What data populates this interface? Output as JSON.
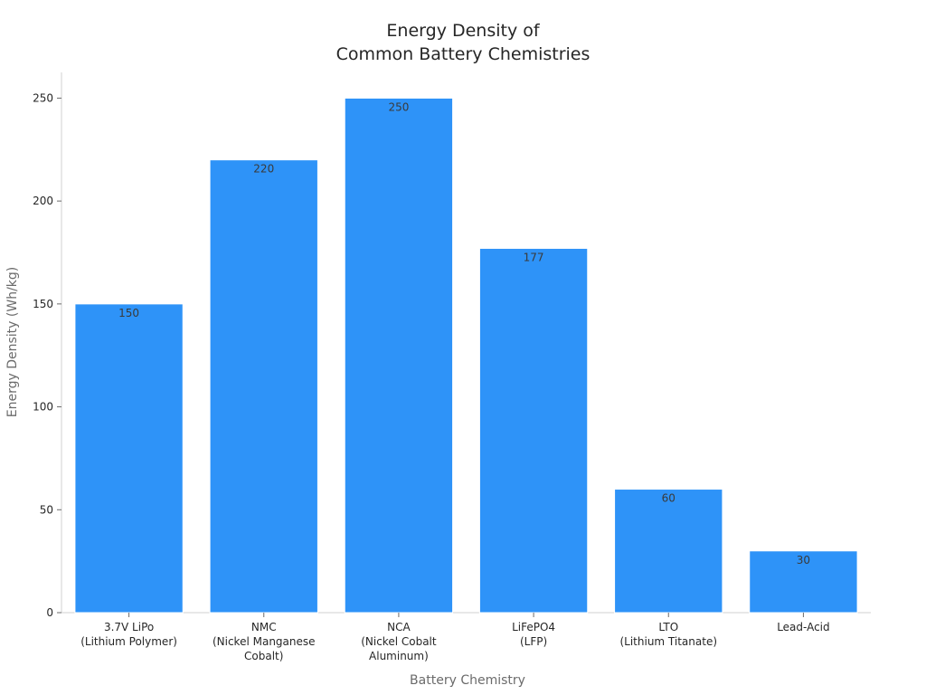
{
  "chart_data": {
    "type": "bar",
    "title_lines": [
      "Energy Density of",
      "Common Battery Chemistries"
    ],
    "xlabel": "Battery Chemistry",
    "ylabel": "Energy Density (Wh/kg)",
    "categories": [
      [
        "3.7V LiPo",
        "(Lithium Polymer)"
      ],
      [
        "NMC",
        "(Nickel Manganese",
        "Cobalt)"
      ],
      [
        "NCA",
        "(Nickel Cobalt",
        "Aluminum)"
      ],
      [
        "LiFePO4",
        "(LFP)"
      ],
      [
        "LTO",
        "(Lithium Titanate)"
      ],
      [
        "Lead-Acid"
      ]
    ],
    "values": [
      150,
      220,
      250,
      177,
      60,
      30
    ],
    "data_labels": [
      "150",
      "220",
      "250",
      "177",
      "60",
      "30"
    ],
    "yticks": [
      0,
      50,
      100,
      150,
      200,
      250
    ],
    "ylim": [
      0,
      262.5
    ],
    "bar_color": "#2e93f8",
    "grid": false,
    "legend": "none"
  }
}
